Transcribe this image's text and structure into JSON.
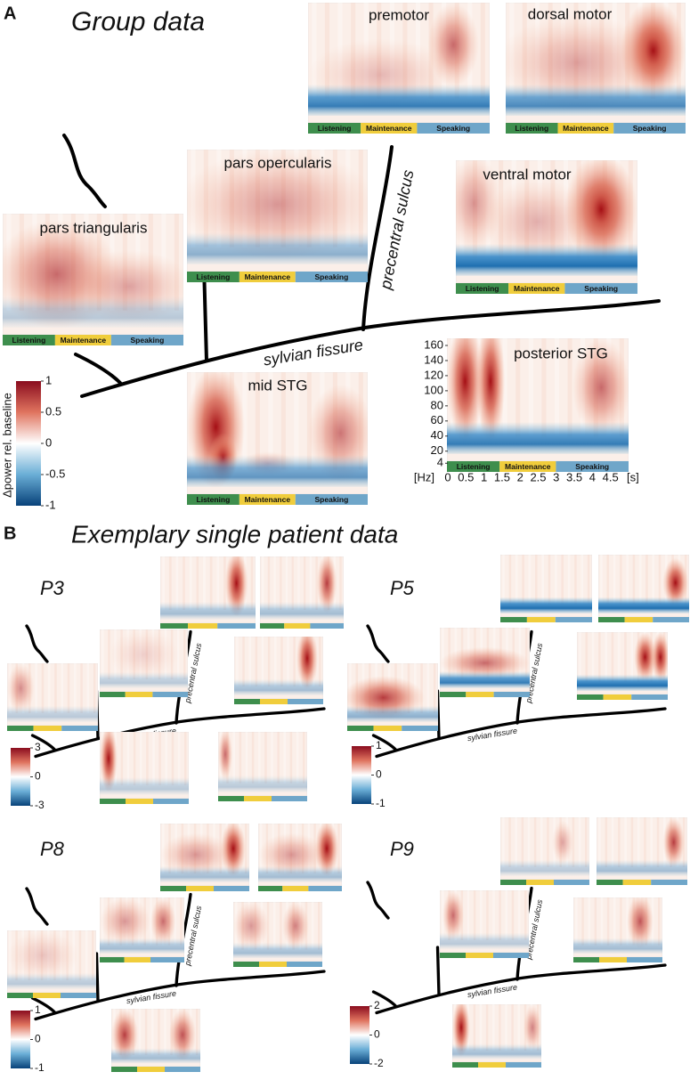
{
  "panel_a": {
    "label": "A",
    "title": "Group data",
    "phases": [
      "Listening",
      "Maintenance",
      "Speaking"
    ],
    "regions": [
      "premotor",
      "dorsal motor",
      "pars opercularis",
      "ventral motor",
      "pars triangularis",
      "mid STG",
      "posterior STG"
    ],
    "sulci": [
      "precentral sulcus",
      "sylvian fissure"
    ],
    "colorbar": {
      "label": "Δpower rel. baseline",
      "ticks": [
        1,
        0.5,
        0,
        -0.5,
        -1
      ]
    },
    "freq_axis": {
      "unit": "[Hz]",
      "ticks": [
        160,
        140,
        120,
        100,
        80,
        60,
        40,
        20,
        4
      ]
    },
    "time_axis": {
      "unit": "[s]",
      "ticks": [
        0,
        0.5,
        1,
        1.5,
        2,
        2.5,
        3,
        3.5,
        4,
        4.5
      ]
    }
  },
  "panel_b": {
    "label": "B",
    "title": "Exemplary single patient data",
    "sulci": [
      "precentral sulcus",
      "sylvian fissure"
    ],
    "patients": [
      {
        "name": "P3",
        "colorbar_ticks": [
          3,
          0,
          -3
        ]
      },
      {
        "name": "P5",
        "colorbar_ticks": [
          1,
          0,
          -1
        ]
      },
      {
        "name": "P8",
        "colorbar_ticks": [
          1,
          0,
          -1
        ]
      },
      {
        "name": "P9",
        "colorbar_ticks": [
          2,
          0,
          -2
        ]
      }
    ]
  }
}
